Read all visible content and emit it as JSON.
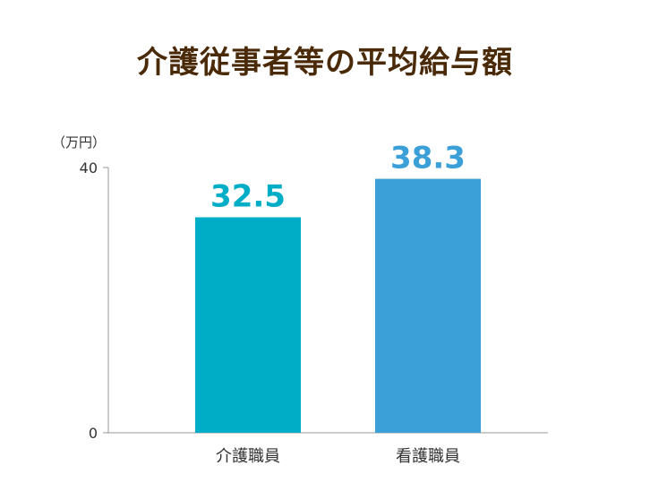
{
  "title": "介護従事者等の平均給与額",
  "chart_data": {
    "type": "bar",
    "title": "介護従事者等の平均給与額",
    "unit_label": "（万円）",
    "categories": [
      "介護職員",
      "看護職員"
    ],
    "values": [
      32.5,
      38.3
    ],
    "value_labels": [
      "32.5",
      "38.3"
    ],
    "ylim": [
      0,
      40
    ],
    "y_ticks": [
      0,
      40
    ],
    "y_tick_labels": [
      "0",
      "40"
    ],
    "xlabel": "",
    "ylabel": "",
    "grid": false,
    "legend": "none",
    "colors": [
      "#00adc6",
      "#3b9fd8"
    ]
  }
}
